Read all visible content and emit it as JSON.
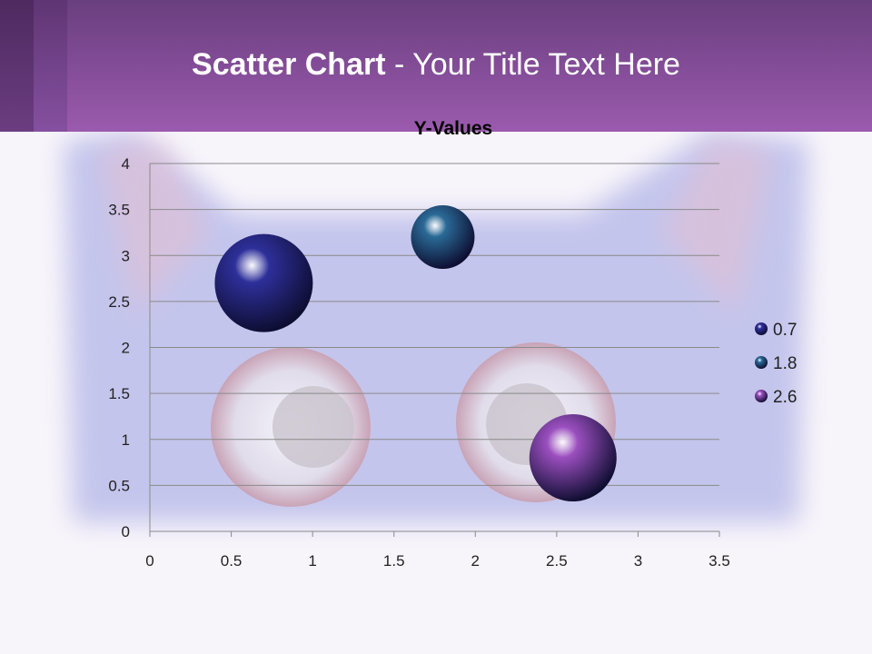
{
  "slide": {
    "title_bold": "Scatter Chart",
    "title_rest": " - Your Title Text Here"
  },
  "colors": {
    "header_top": "#6a3f7f",
    "header_bottom": "#9b5aae",
    "bubble_1": "#2e2f9a",
    "bubble_2": "#2a6a96",
    "bubble_3": "#9b4fbf"
  },
  "chart_data": {
    "type": "bubble",
    "title": "Y-Values",
    "xlim": [
      0,
      3.5
    ],
    "ylim": [
      0,
      4
    ],
    "x_ticks": [
      "0",
      "0.5",
      "1",
      "1.5",
      "2",
      "2.5",
      "3",
      "3.5"
    ],
    "y_ticks": [
      "0",
      "0.5",
      "1",
      "1.5",
      "2",
      "2.5",
      "3",
      "3.5",
      "4"
    ],
    "grid": "horizontal",
    "legend_position": "right",
    "points": [
      {
        "label": "0.7",
        "x": 0.7,
        "y": 2.7,
        "size": 10,
        "color": "#2e2f9a"
      },
      {
        "label": "1.8",
        "x": 1.8,
        "y": 3.2,
        "size": 4.2,
        "color": "#2a6a96"
      },
      {
        "label": "2.6",
        "x": 2.6,
        "y": 0.8,
        "size": 7.9,
        "color": "#9b4fbf"
      }
    ]
  }
}
